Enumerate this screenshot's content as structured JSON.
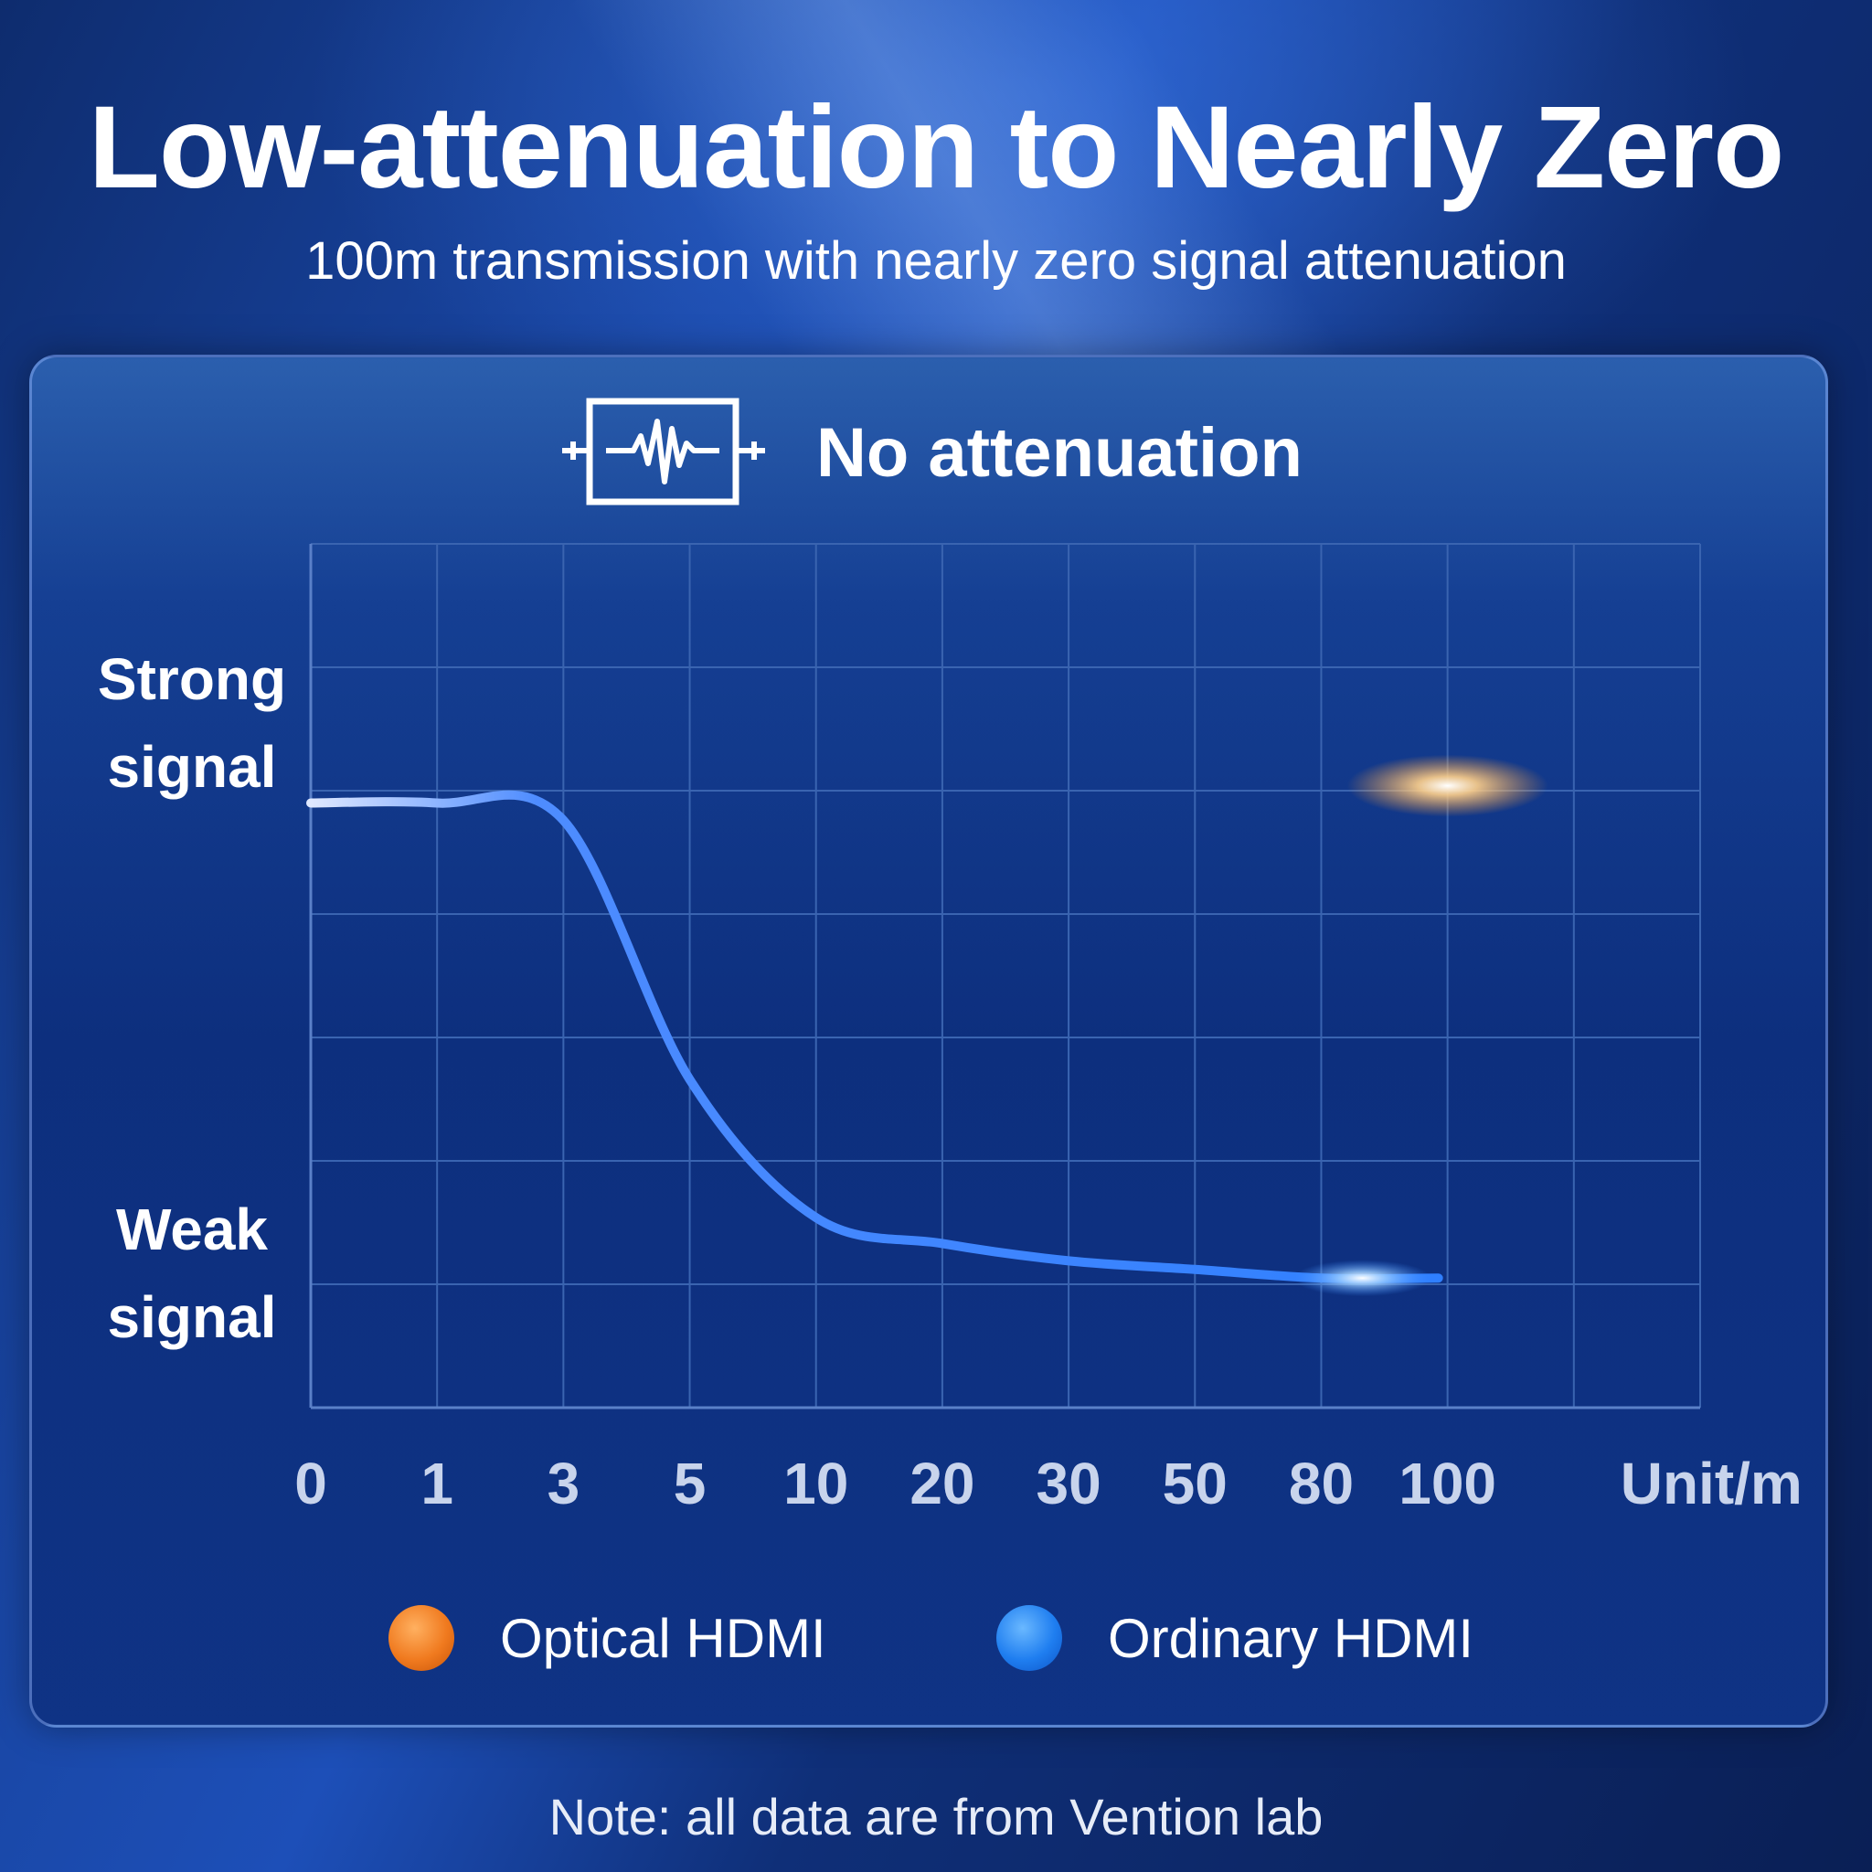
{
  "title": "Low-attenuation to Nearly Zero",
  "subtitle": "100m transmission with nearly zero signal attenuation",
  "panel_heading": "No attenuation",
  "note": "Note: all data are from Vention lab",
  "colors": {
    "optical": "#f0a060",
    "ordinary": "#2f7fff",
    "grid": "#3a64b0",
    "tick_label": "#c8d4ec"
  },
  "chart_data": {
    "type": "line",
    "x_label": "Unit/m",
    "x_ticks": [
      "0",
      "1",
      "3",
      "5",
      "10",
      "20",
      "30",
      "50",
      "80",
      "100"
    ],
    "y_labels": {
      "top": "Strong signal",
      "bottom": "Weak signal"
    },
    "y_label_lines": {
      "top": [
        "Strong",
        "signal"
      ],
      "bottom": [
        "Weak",
        "signal"
      ]
    },
    "ylim": [
      0,
      100
    ],
    "grid": true,
    "legend_position": "bottom-center",
    "series": [
      {
        "name": "Optical HDMI",
        "x": [
          "0",
          "1",
          "3",
          "5",
          "10",
          "20",
          "30",
          "50",
          "80",
          "100"
        ],
        "values": [
          72,
          72,
          72,
          72,
          72,
          72,
          72,
          72,
          72,
          72
        ]
      },
      {
        "name": "Ordinary HDMI",
        "x": [
          "0",
          "1",
          "3",
          "5",
          "10",
          "20",
          "30",
          "50",
          "80",
          "100"
        ],
        "values": [
          70,
          70,
          68,
          38,
          22,
          19,
          17,
          16,
          15,
          15
        ]
      }
    ]
  }
}
